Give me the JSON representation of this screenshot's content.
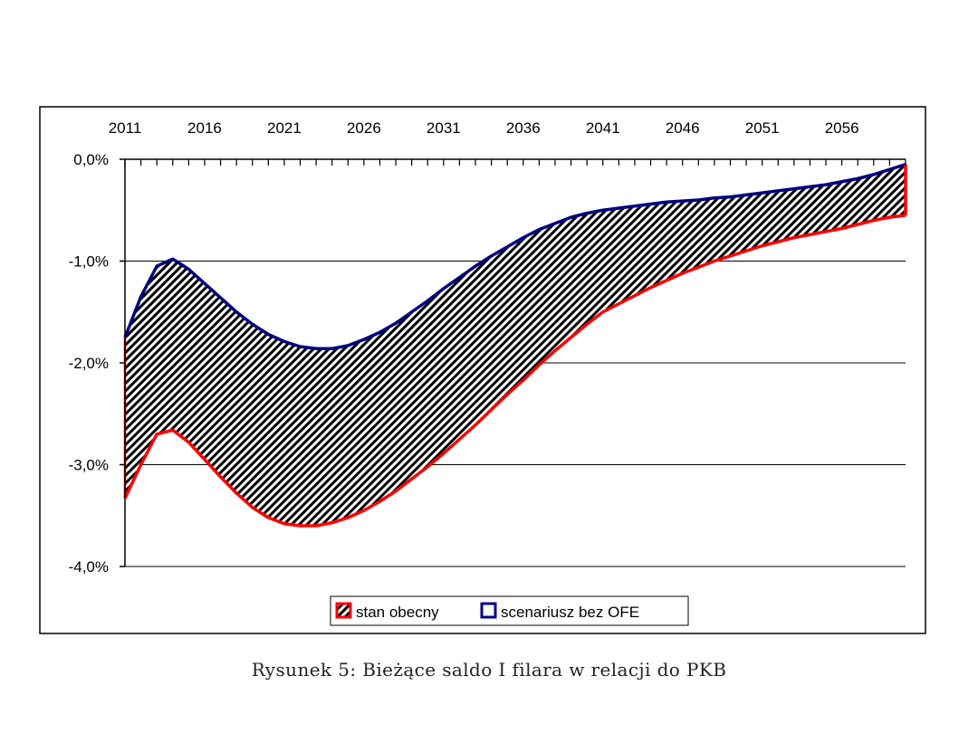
{
  "caption": "Rysunek 5: Bieżące saldo I filara w relacji do PKB",
  "chart_data": {
    "type": "area",
    "x_ticks": [
      "2011",
      "2016",
      "2021",
      "2026",
      "2031",
      "2036",
      "2041",
      "2046",
      "2051",
      "2056"
    ],
    "y_ticks": [
      "0,0%",
      "-1,0%",
      "-2,0%",
      "-3,0%",
      "-4,0%"
    ],
    "xlim": [
      2011,
      2060
    ],
    "ylim": [
      -4.0,
      0.0
    ],
    "x_axis_position": "top",
    "grid": "horizontal",
    "legend_position": "bottom-center",
    "colors": {
      "stan_obecny": "#ff0000",
      "scenariusz_bez_ofe": "#000080",
      "hatch": "#000000"
    },
    "x": [
      2011,
      2012,
      2013,
      2014,
      2015,
      2016,
      2017,
      2018,
      2019,
      2020,
      2021,
      2022,
      2023,
      2024,
      2025,
      2026,
      2027,
      2028,
      2029,
      2030,
      2031,
      2032,
      2033,
      2034,
      2035,
      2036,
      2037,
      2038,
      2039,
      2040,
      2041,
      2042,
      2043,
      2044,
      2045,
      2046,
      2047,
      2048,
      2049,
      2050,
      2051,
      2052,
      2053,
      2054,
      2055,
      2056,
      2057,
      2058,
      2059,
      2060
    ],
    "series": [
      {
        "name": "stan obecny",
        "values": [
          -3.33,
          -3.0,
          -2.7,
          -2.66,
          -2.78,
          -2.95,
          -3.12,
          -3.28,
          -3.42,
          -3.52,
          -3.58,
          -3.6,
          -3.6,
          -3.57,
          -3.52,
          -3.45,
          -3.36,
          -3.26,
          -3.14,
          -3.02,
          -2.89,
          -2.75,
          -2.61,
          -2.46,
          -2.31,
          -2.17,
          -2.02,
          -1.88,
          -1.75,
          -1.62,
          -1.5,
          -1.42,
          -1.34,
          -1.26,
          -1.19,
          -1.12,
          -1.06,
          -1.0,
          -0.95,
          -0.9,
          -0.85,
          -0.81,
          -0.77,
          -0.74,
          -0.71,
          -0.68,
          -0.64,
          -0.6,
          -0.57,
          -0.55
        ]
      },
      {
        "name": "scenariusz bez OFE",
        "values": [
          -1.75,
          -1.35,
          -1.05,
          -0.98,
          -1.08,
          -1.22,
          -1.36,
          -1.5,
          -1.62,
          -1.72,
          -1.79,
          -1.84,
          -1.86,
          -1.86,
          -1.83,
          -1.77,
          -1.7,
          -1.61,
          -1.5,
          -1.39,
          -1.27,
          -1.16,
          -1.05,
          -0.95,
          -0.86,
          -0.77,
          -0.69,
          -0.63,
          -0.57,
          -0.53,
          -0.5,
          -0.48,
          -0.46,
          -0.44,
          -0.42,
          -0.41,
          -0.4,
          -0.38,
          -0.37,
          -0.35,
          -0.33,
          -0.31,
          -0.29,
          -0.27,
          -0.25,
          -0.22,
          -0.19,
          -0.15,
          -0.1,
          -0.05
        ]
      }
    ]
  }
}
